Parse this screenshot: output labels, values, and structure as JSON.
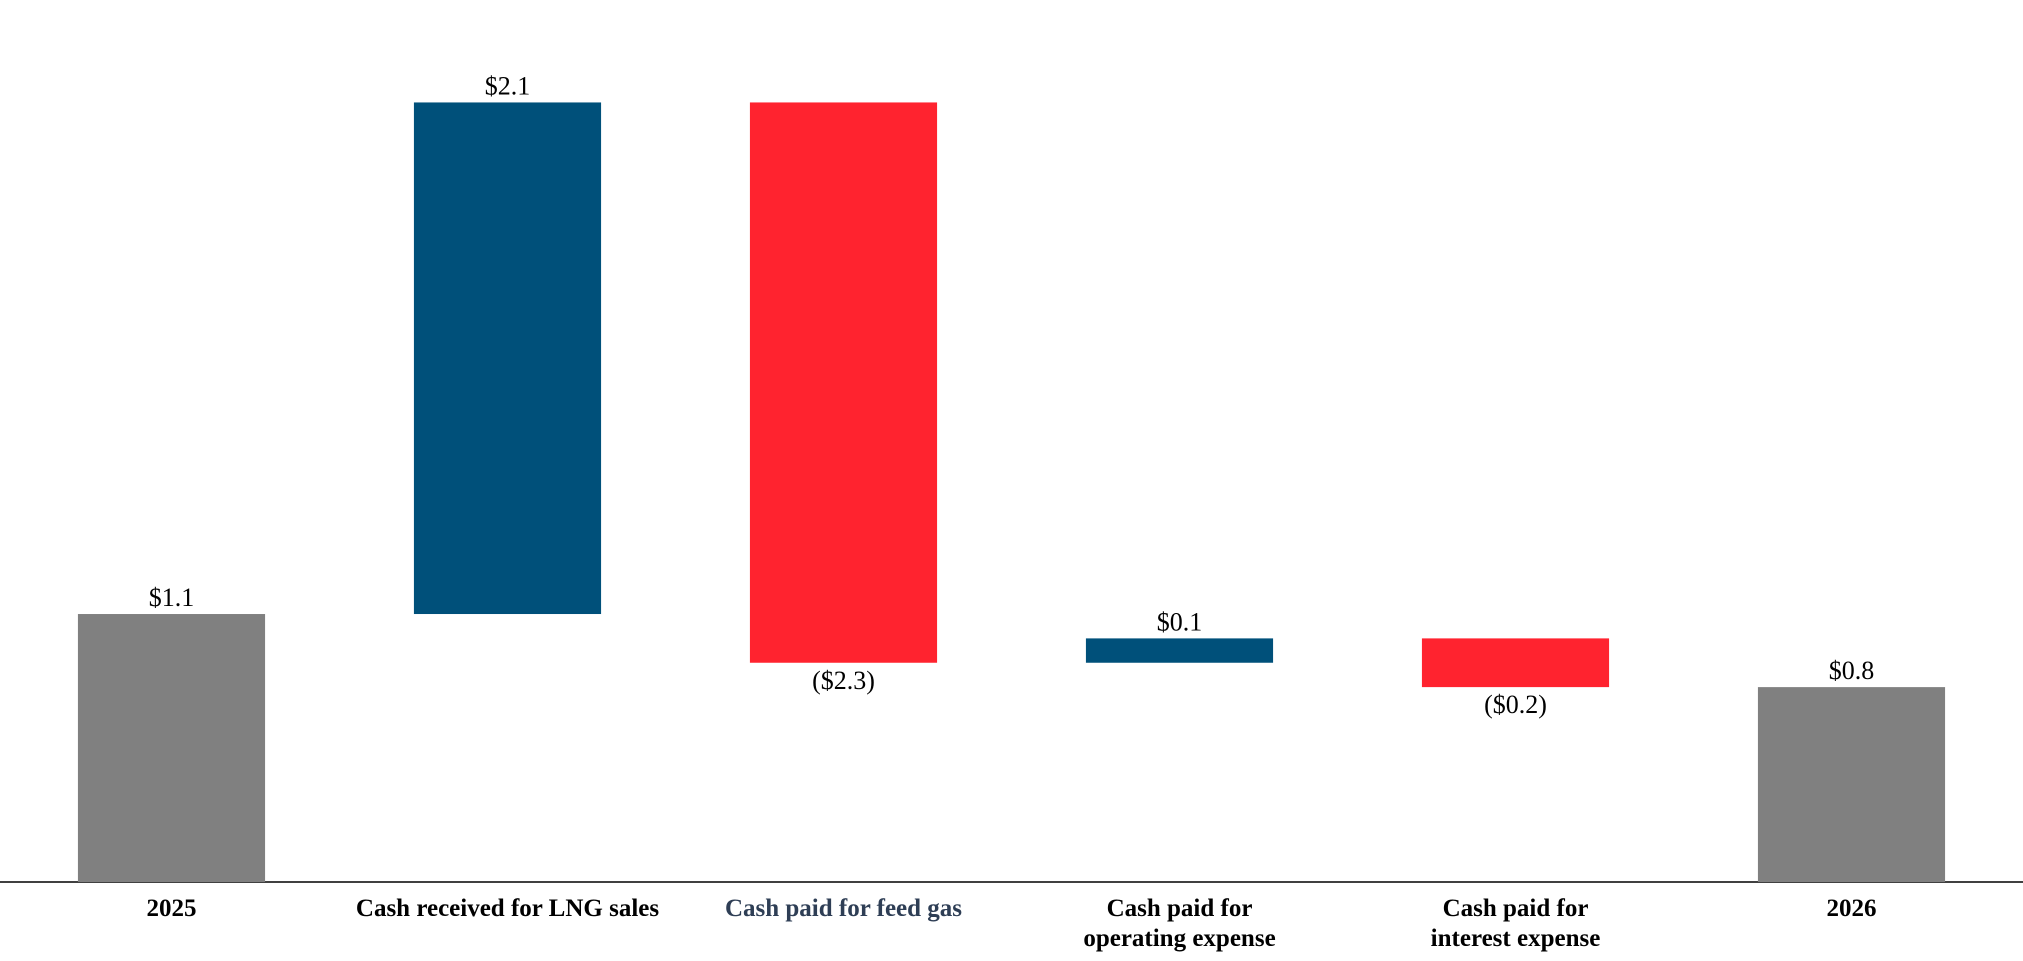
{
  "chart_data": {
    "type": "waterfall",
    "categories": [
      "2025",
      "Cash received for LNG sales",
      "Cash paid for feed gas",
      "Cash paid for\noperating expense",
      "Cash paid for\ninterest expense",
      "2026"
    ],
    "values": [
      1.1,
      2.1,
      -2.3,
      0.1,
      -0.2,
      0.8
    ],
    "value_labels": [
      "$1.1",
      "$2.1",
      "($2.3)",
      "$0.1",
      "($0.2)",
      "$0.8"
    ],
    "is_total": [
      true,
      false,
      false,
      false,
      false,
      true
    ],
    "colors": [
      "#808080",
      "#00507a",
      "#ff232f",
      "#00507a",
      "#ff232f",
      "#808080"
    ],
    "category_colors": [
      "#000000",
      "#000000",
      "#2e3e55",
      "#000000",
      "#000000",
      "#000000"
    ],
    "ylim": [
      0,
      3.6
    ]
  }
}
